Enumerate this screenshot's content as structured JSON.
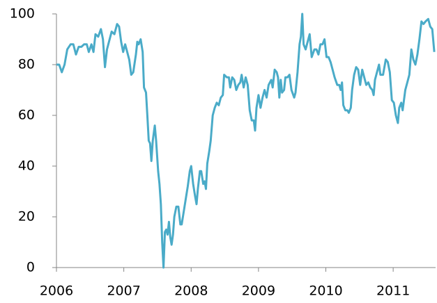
{
  "chart_data": {
    "type": "line",
    "x": [
      2006.0,
      2006.04,
      2006.08,
      2006.12,
      2006.16,
      2006.21,
      2006.25,
      2006.29,
      2006.33,
      2006.37,
      2006.41,
      2006.45,
      2006.48,
      2006.52,
      2006.55,
      2006.58,
      2006.62,
      2006.66,
      2006.69,
      2006.72,
      2006.75,
      2006.79,
      2006.82,
      2006.86,
      2006.9,
      2006.93,
      2006.96,
      2006.99,
      2007.02,
      2007.05,
      2007.08,
      2007.11,
      2007.14,
      2007.18,
      2007.2,
      2007.22,
      2007.25,
      2007.28,
      2007.3,
      2007.33,
      2007.35,
      2007.37,
      2007.39,
      2007.41,
      2007.43,
      2007.46,
      2007.48,
      2007.51,
      2007.53,
      2007.55,
      2007.57,
      2007.59,
      2007.61,
      2007.63,
      2007.65,
      2007.67,
      2007.69,
      2007.71,
      2007.73,
      2007.75,
      2007.78,
      2007.81,
      2007.84,
      2007.86,
      2007.89,
      2007.92,
      2007.95,
      2007.98,
      2008.0,
      2008.03,
      2008.06,
      2008.08,
      2008.1,
      2008.13,
      2008.15,
      2008.18,
      2008.2,
      2008.22,
      2008.24,
      2008.27,
      2008.29,
      2008.32,
      2008.35,
      2008.38,
      2008.41,
      2008.44,
      2008.47,
      2008.49,
      2008.53,
      2008.56,
      2008.58,
      2008.61,
      2008.64,
      2008.67,
      2008.7,
      2008.73,
      2008.75,
      2008.78,
      2008.81,
      2008.84,
      2008.87,
      2008.9,
      2008.93,
      2008.95,
      2008.97,
      2009.0,
      2009.03,
      2009.06,
      2009.09,
      2009.12,
      2009.15,
      2009.19,
      2009.21,
      2009.24,
      2009.27,
      2009.29,
      2009.31,
      2009.33,
      2009.35,
      2009.38,
      2009.4,
      2009.43,
      2009.46,
      2009.49,
      2009.53,
      2009.55,
      2009.58,
      2009.61,
      2009.63,
      2009.65,
      2009.67,
      2009.7,
      2009.73,
      2009.76,
      2009.79,
      2009.83,
      2009.86,
      2009.89,
      2009.92,
      2009.95,
      2009.98,
      2010.01,
      2010.04,
      2010.07,
      2010.1,
      2010.13,
      2010.17,
      2010.2,
      2010.22,
      2010.24,
      2010.26,
      2010.29,
      2010.32,
      2010.34,
      2010.37,
      2010.39,
      2010.42,
      2010.45,
      2010.48,
      2010.51,
      2010.54,
      2010.57,
      2010.6,
      2010.63,
      2010.66,
      2010.69,
      2010.71,
      2010.73,
      2010.76,
      2010.79,
      2010.81,
      2010.85,
      2010.89,
      2010.92,
      2010.95,
      2010.98,
      2011.01,
      2011.04,
      2011.07,
      2011.09,
      2011.12,
      2011.14,
      2011.18,
      2011.21,
      2011.24,
      2011.27,
      2011.3,
      2011.33,
      2011.36,
      2011.39,
      2011.42,
      2011.45,
      2011.48,
      2011.52,
      2011.55,
      2011.58,
      2011.61
    ],
    "values": [
      80,
      80,
      77,
      80,
      86,
      88,
      88,
      84,
      87,
      87,
      88,
      88,
      85,
      88,
      85,
      92,
      91,
      94,
      90,
      79,
      86,
      90,
      93,
      92,
      96,
      95,
      89,
      85,
      88,
      85,
      82,
      76,
      77,
      84,
      89,
      88,
      90,
      85,
      71,
      69,
      60,
      50,
      49,
      42,
      50,
      56,
      50,
      38,
      33,
      25,
      10,
      0,
      14,
      15,
      13,
      18,
      12,
      9,
      13,
      20,
      24,
      24,
      17,
      17,
      22,
      27,
      32,
      38,
      40,
      33,
      28,
      25,
      31,
      38,
      38,
      33,
      34,
      31,
      41,
      46,
      50,
      60,
      63,
      65,
      64,
      67,
      68,
      76,
      75,
      75,
      71,
      75,
      74,
      70,
      72,
      73,
      76,
      71,
      75,
      72,
      62,
      58,
      58,
      54,
      63,
      68,
      63,
      67,
      70,
      67,
      72,
      74,
      71,
      78,
      77,
      75,
      67,
      74,
      69,
      70,
      75,
      75,
      76,
      70,
      67,
      69,
      77,
      88,
      91,
      100,
      88,
      86,
      89,
      92,
      83,
      86,
      86,
      84,
      88,
      88,
      90,
      83,
      83,
      81,
      78,
      75,
      72,
      72,
      70,
      73,
      64,
      62,
      62,
      61,
      63,
      70,
      76,
      79,
      78,
      72,
      78,
      75,
      72,
      73,
      71,
      70,
      68,
      74,
      77,
      80,
      76,
      76,
      82,
      81,
      77,
      66,
      65,
      60,
      57,
      63,
      65,
      62,
      70,
      73,
      76,
      86,
      82,
      80,
      84,
      90,
      97,
      96,
      97,
      98,
      95,
      94,
      85
    ],
    "color": "#4aabc8",
    "xlim": [
      2006,
      2011.63
    ],
    "xticks": [
      2006,
      2007,
      2008,
      2009,
      2010,
      2011
    ],
    "ylim": [
      0,
      100
    ],
    "yticks": [
      0,
      20,
      40,
      60,
      80,
      100
    ]
  }
}
